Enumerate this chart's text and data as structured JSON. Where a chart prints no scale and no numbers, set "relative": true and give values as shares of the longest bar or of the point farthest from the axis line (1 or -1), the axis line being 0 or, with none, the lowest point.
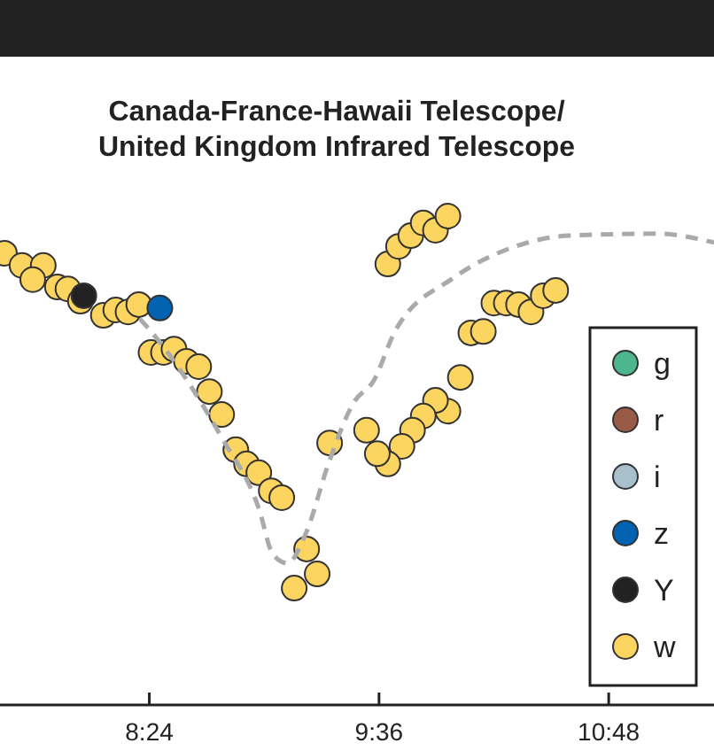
{
  "chart_data": {
    "type": "scatter",
    "title": "Canada-France-Hawaii Telescope/\nUnited Kingdom Infrared Telescope",
    "relative": true,
    "xlim": [
      7.62,
      11.35
    ],
    "xticks": [
      {
        "value": 8.4,
        "label": "8:24"
      },
      {
        "value": 9.6,
        "label": "9:36"
      },
      {
        "value": 10.8,
        "label": "10:48"
      }
    ],
    "grid": false,
    "legend": "right",
    "marker": "circle",
    "tick_labels": "x",
    "series": [
      {
        "type": "line",
        "color": "#aaaaaa",
        "line_style": "dashed",
        "marker": "none",
        "x": [
          8.35,
          8.409,
          8.778,
          8.972,
          9.046,
          9.12,
          9.222,
          9.332,
          9.47,
          9.572,
          9.683,
          9.987,
          10.291,
          10.592,
          11.054,
          11.35
        ],
        "values": [
          0.79,
          0.764,
          0.547,
          0.402,
          0.308,
          0.29,
          0.355,
          0.489,
          0.62,
          0.663,
          0.764,
          0.873,
          0.935,
          0.96,
          0.964,
          0.946
        ]
      },
      {
        "name": "g",
        "color": "#4cb68e"
      },
      {
        "name": "r",
        "color": "#9a5a48"
      },
      {
        "name": "i",
        "color": "#a8c0cc"
      },
      {
        "name": "z",
        "color": "#0062b0",
        "x": [
          8.455
        ],
        "values": [
          0.812
        ]
      },
      {
        "name": "Y",
        "color": "#222222",
        "x": [
          8.058
        ],
        "values": [
          0.837
        ]
      },
      {
        "name": "w",
        "color": "#fcd561",
        "x": [
          7.643,
          7.735,
          7.846,
          7.791,
          7.92,
          7.975,
          8.04,
          8.16,
          8.225,
          8.289,
          8.345,
          8.409,
          8.474,
          8.529,
          8.594,
          8.658,
          8.714,
          8.778,
          8.852,
          8.908,
          8.972,
          9.037,
          9.092,
          9.222,
          9.277,
          9.157,
          9.342,
          9.646,
          9.702,
          9.766,
          9.831,
          9.895,
          9.96,
          10.2,
          10.265,
          10.329,
          10.394,
          10.458,
          10.523,
          10.08,
          10.145,
          10.025,
          9.96,
          9.895,
          9.831,
          9.775,
          9.72,
          9.646,
          9.591,
          9.535
        ],
        "values": [
          0.924,
          0.899,
          0.899,
          0.87,
          0.855,
          0.851,
          0.826,
          0.797,
          0.808,
          0.804,
          0.819,
          0.721,
          0.721,
          0.728,
          0.703,
          0.692,
          0.641,
          0.594,
          0.522,
          0.493,
          0.475,
          0.438,
          0.424,
          0.319,
          0.268,
          0.239,
          0.536,
          0.902,
          0.938,
          0.96,
          0.986,
          0.971,
          1.0,
          0.822,
          0.822,
          0.819,
          0.804,
          0.837,
          0.848,
          0.761,
          0.764,
          0.67,
          0.601,
          0.623,
          0.591,
          0.562,
          0.529,
          0.493,
          0.514,
          0.562
        ]
      }
    ]
  }
}
